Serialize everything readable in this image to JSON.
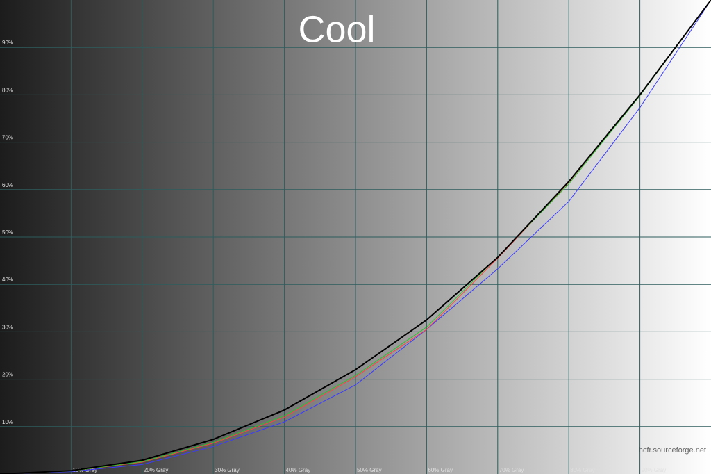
{
  "chart_data": {
    "type": "line",
    "title": "Cool",
    "watermark": "hcfr.sourceforge.net",
    "x": [
      0,
      10,
      20,
      30,
      40,
      50,
      60,
      70,
      80,
      90,
      100
    ],
    "xlim": [
      0,
      100
    ],
    "ylim": [
      0,
      100
    ],
    "grid": true,
    "xticks": [
      {
        "value": 10,
        "label": "10% Gray"
      },
      {
        "value": 20,
        "label": "20% Gray"
      },
      {
        "value": 30,
        "label": "30% Gray"
      },
      {
        "value": 40,
        "label": "40% Gray"
      },
      {
        "value": 50,
        "label": "50% Gray"
      },
      {
        "value": 60,
        "label": "60% Gray"
      },
      {
        "value": 70,
        "label": "70% Gray"
      },
      {
        "value": 80,
        "label": "80% Gray"
      },
      {
        "value": 90,
        "label": "90% Gray"
      }
    ],
    "yticks": [
      {
        "value": 10,
        "label": "10%"
      },
      {
        "value": 20,
        "label": "20%"
      },
      {
        "value": 30,
        "label": "30%"
      },
      {
        "value": 40,
        "label": "40%"
      },
      {
        "value": 50,
        "label": "50%"
      },
      {
        "value": 60,
        "label": "60%"
      },
      {
        "value": 70,
        "label": "70%"
      },
      {
        "value": 80,
        "label": "80%"
      },
      {
        "value": 90,
        "label": "90%"
      }
    ],
    "series": [
      {
        "color": "#3a3aff",
        "values": [
          0,
          0.5,
          2.0,
          5.8,
          11,
          18.8,
          30.5,
          43.3,
          57.5,
          77.3,
          100
        ]
      },
      {
        "color": "#ff4040",
        "values": [
          0,
          0.6,
          2.5,
          6.5,
          12,
          20.5,
          30.5,
          45.5,
          61.5,
          80,
          100
        ]
      },
      {
        "color": "#30c030",
        "values": [
          0,
          0.6,
          2.6,
          6.7,
          12.3,
          20.8,
          31,
          45.8,
          61.2,
          79.8,
          100
        ]
      },
      {
        "color": "#000000",
        "values": [
          0,
          0.7,
          2.9,
          7.3,
          13.5,
          22,
          32.5,
          45.7,
          61.7,
          80,
          100
        ]
      }
    ]
  }
}
